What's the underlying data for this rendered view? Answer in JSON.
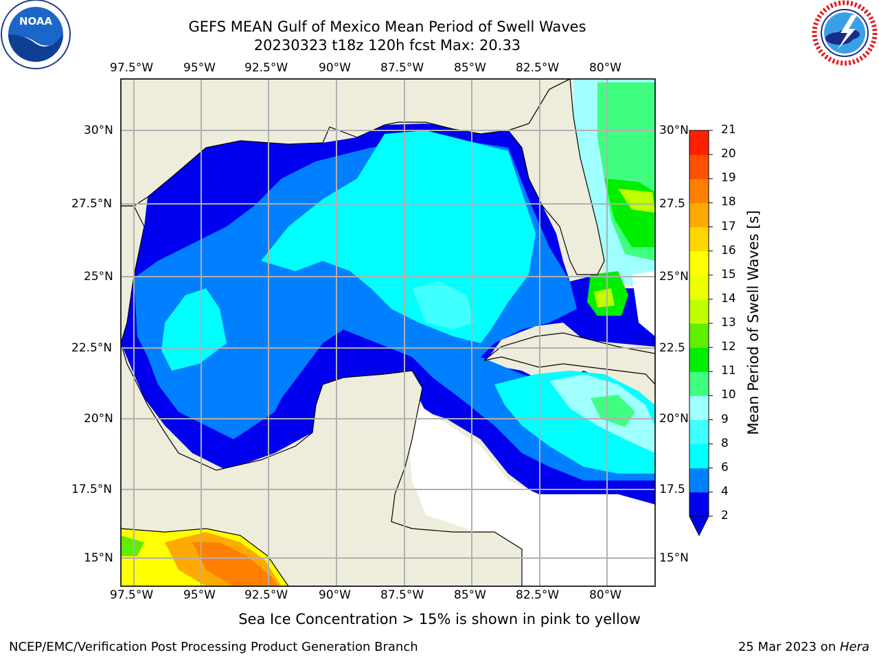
{
  "header": {
    "title_line1": "GEFS MEAN Gulf of Mexico Mean Period of Swell Waves",
    "title_line2": "20230323 t18z 120h fcst   Max: 20.33"
  },
  "logos": {
    "noaa_text": "NOAA",
    "noaa_ring": "NATIONAL OCEANIC AND ATMOSPHERIC ADMINISTRATION · U.S. DEPARTMENT OF COMMERCE",
    "nws_ring": "NATIONAL WEATHER SERVICE"
  },
  "map": {
    "lon_labels": [
      "97.5°W",
      "95°W",
      "92.5°W",
      "90°W",
      "87.5°W",
      "85°W",
      "82.5°W",
      "80°W"
    ],
    "lat_labels_left": [
      "30°N",
      "27.5°N",
      "25°N",
      "22.5°N",
      "20°N",
      "17.5°N",
      "15°N"
    ],
    "lat_labels_right": [
      "30°N",
      "27.5",
      "25°N",
      "22.5",
      "20°N",
      "17.5",
      "15°N"
    ],
    "colors": {
      "land": "#eeeddc",
      "grid": "#b0b0b0",
      "coast": "#000000"
    }
  },
  "colorbar": {
    "label": "Mean Period of Swell Waves [s]",
    "ticks": [
      "2",
      "4",
      "6",
      "8",
      "9",
      "10",
      "11",
      "12",
      "13",
      "14",
      "15",
      "16",
      "17",
      "18",
      "19",
      "20",
      "21"
    ],
    "colors": [
      "#0000ee",
      "#0080ff",
      "#00ffff",
      "#40ffff",
      "#a0ffff",
      "#40ff80",
      "#00ee00",
      "#60ee00",
      "#c0ff00",
      "#eeff00",
      "#ffff00",
      "#ffd700",
      "#ffaa00",
      "#ff8000",
      "#ff5000",
      "#ff2000",
      "#ff0000"
    ]
  },
  "footer": {
    "note": "Sea Ice Concentration > 15% is shown in pink to yellow",
    "left": "NCEP/EMC/Verification Post Processing Product Generation Branch",
    "right_date": "25 Mar 2023 on ",
    "right_host": "Hera"
  }
}
